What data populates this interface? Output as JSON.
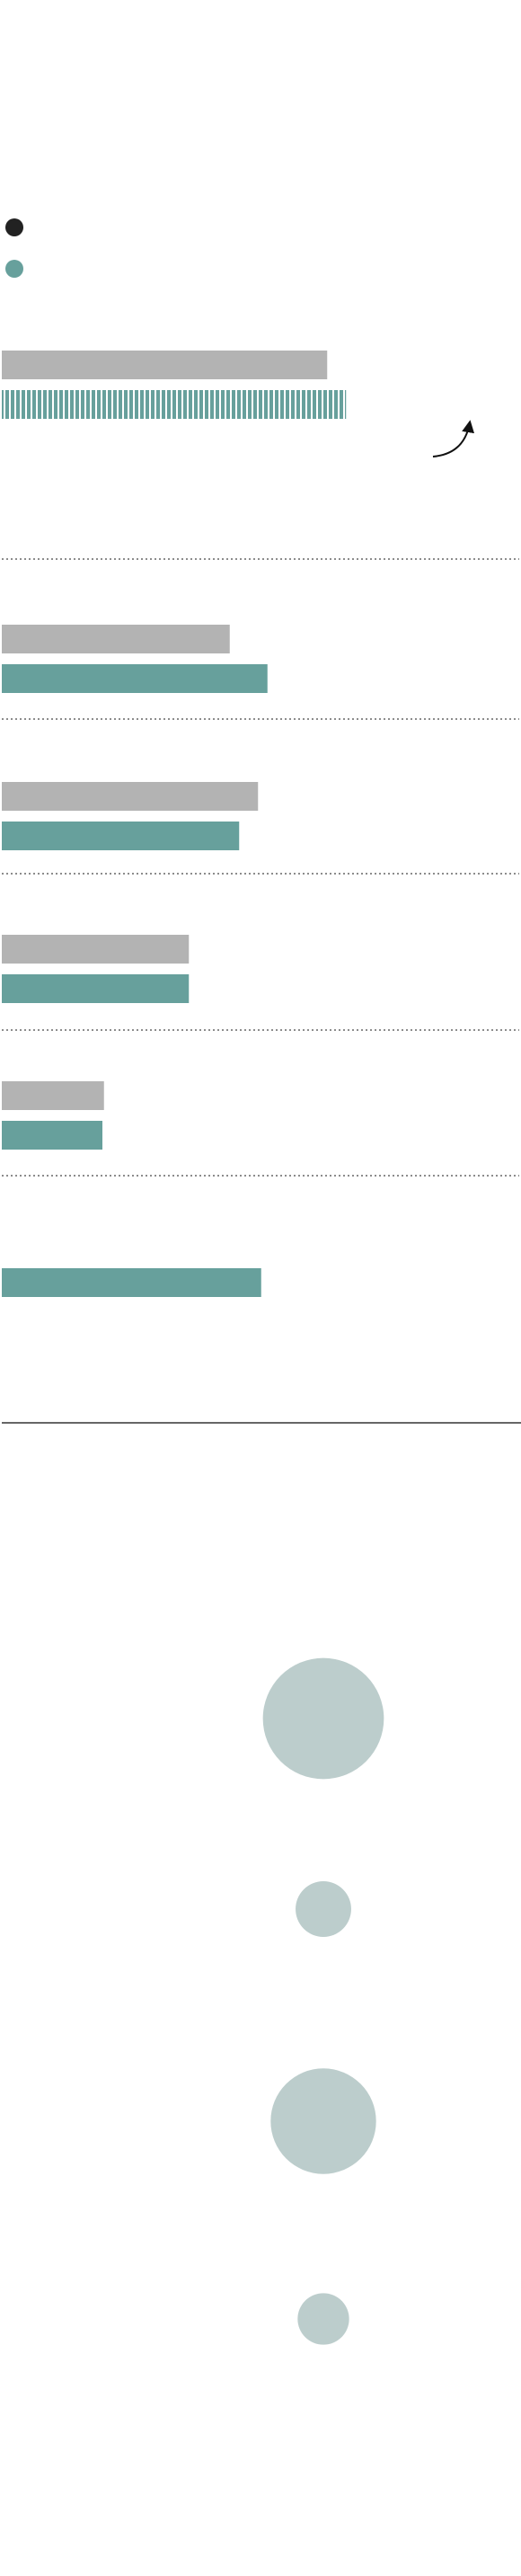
{
  "colors": {
    "gray": "#b3b3b3",
    "teal": "#67a09c",
    "dark": "#222222",
    "bubble": "#bccdcc",
    "divider": "#666666",
    "axis": "#555555"
  },
  "legend": {
    "items": [
      {
        "color": "#222222",
        "label": ""
      },
      {
        "color": "#67a09c",
        "label": ""
      }
    ]
  },
  "chart_data": [
    {
      "type": "bar",
      "orientation": "horizontal",
      "grid": false,
      "title": "",
      "xlabel": "",
      "ylabel": "",
      "categories": [
        "",
        "",
        "",
        "",
        "",
        ""
      ],
      "series": [
        {
          "color": "#b3b3b3",
          "values": [
            207,
            145,
            163,
            119,
            65,
            null
          ]
        },
        {
          "color": "#67a09c",
          "values": [
            219,
            169,
            151,
            119,
            64,
            165
          ],
          "patterned_first": true
        }
      ],
      "annotation": {
        "type": "curved-arrow",
        "text": ""
      }
    },
    {
      "type": "bubble",
      "title": "",
      "categories": [
        "",
        "",
        "",
        ""
      ],
      "values": [
        148,
        68,
        129,
        63
      ]
    }
  ]
}
